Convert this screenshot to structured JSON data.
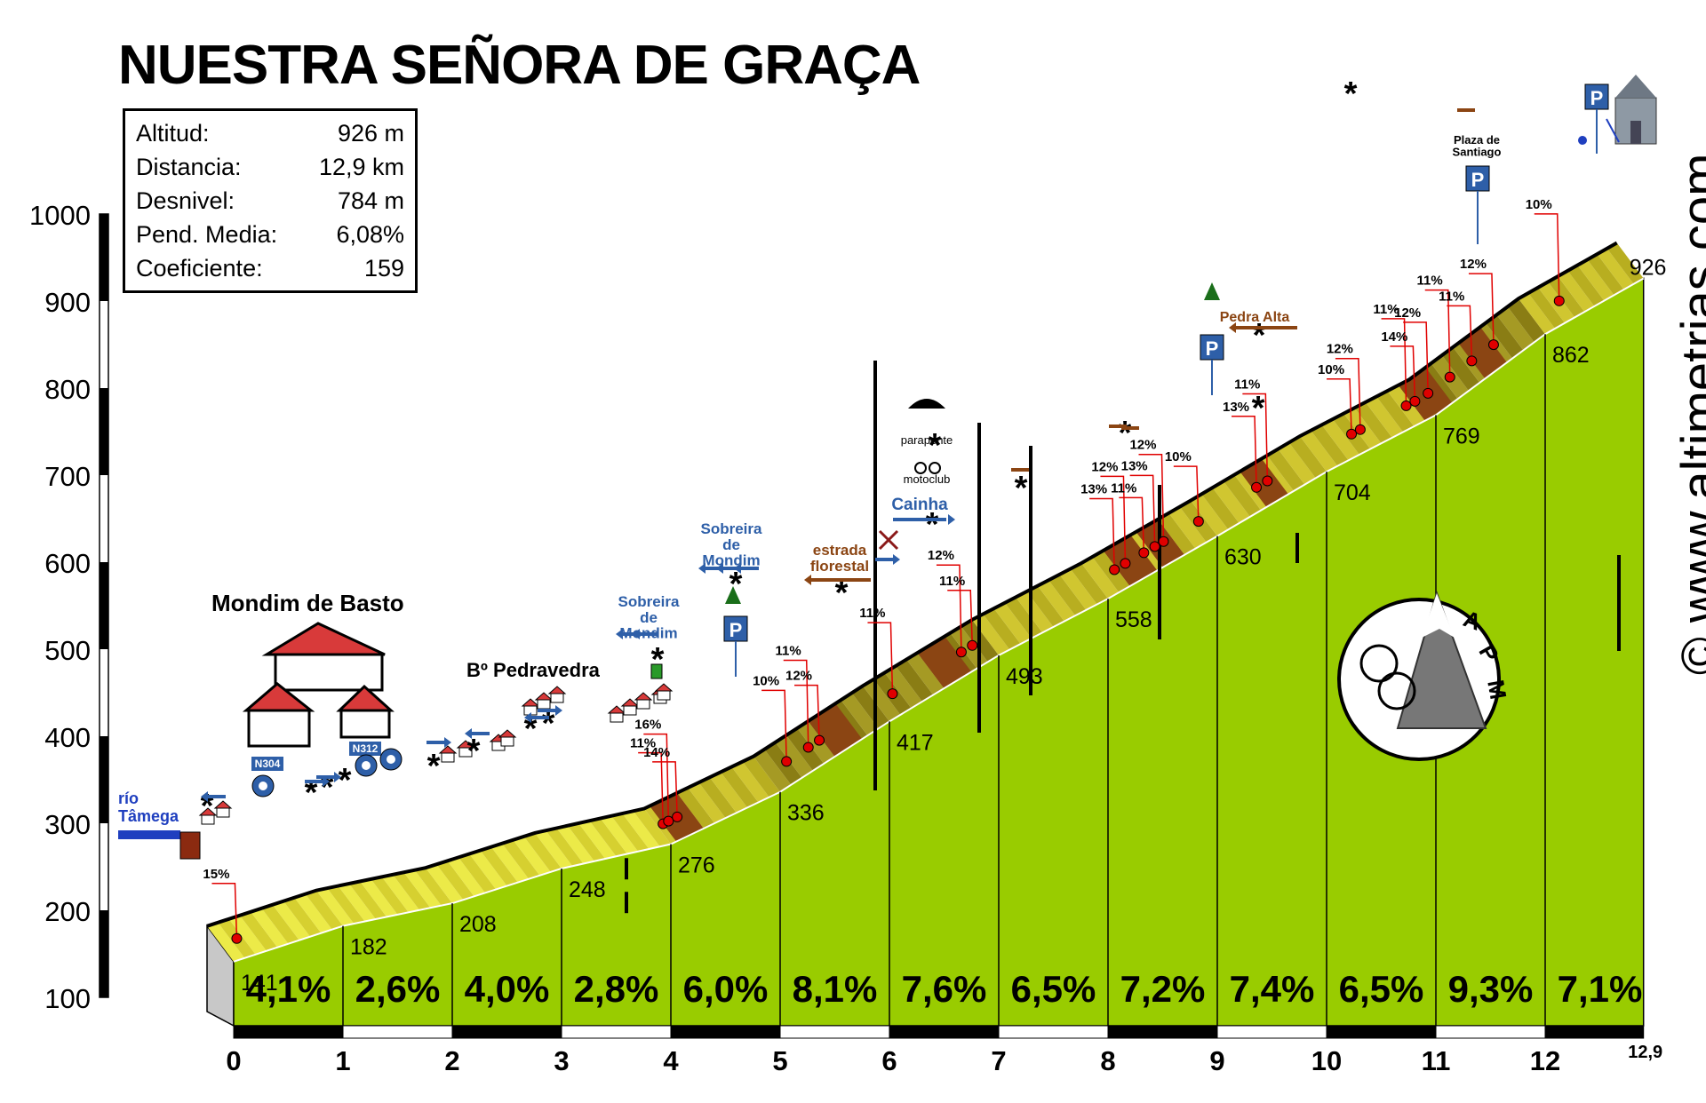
{
  "title": "NUESTRA SEÑORA DE GRAÇA",
  "stats": [
    {
      "label": "Altitud:",
      "value": "926 m"
    },
    {
      "label": "Distancia:",
      "value": "12,9 km"
    },
    {
      "label": "Desnivel:",
      "value": "784 m"
    },
    {
      "label": "Pend. Media:",
      "value": "6,08%"
    },
    {
      "label": "Coeficiente:",
      "value": "159"
    }
  ],
  "brand": "© www.altimetrias.com",
  "logo_text": "APM",
  "colors": {
    "fill": "#99cc00",
    "road": "#c8c800",
    "steep": "#8b4513",
    "dot": "#e00000",
    "sign": "#2e5fa8",
    "brown_sign": "#8b4513"
  },
  "chart_data": {
    "type": "area",
    "x_unit": "km",
    "ylim": [
      100,
      1000
    ],
    "yticks": [
      "1000",
      "900",
      "800",
      "700",
      "600",
      "500",
      "400",
      "300",
      "200",
      "100"
    ],
    "xticks": [
      "0",
      "1",
      "2",
      "3",
      "4",
      "5",
      "6",
      "7",
      "8",
      "9",
      "10",
      "11",
      "12"
    ],
    "end_label": "12,9",
    "km_points": [
      {
        "km": 0,
        "alt": 141
      },
      {
        "km": 1,
        "alt": 182
      },
      {
        "km": 2,
        "alt": 208
      },
      {
        "km": 3,
        "alt": 248
      },
      {
        "km": 4,
        "alt": 276
      },
      {
        "km": 5,
        "alt": 336
      },
      {
        "km": 6,
        "alt": 417
      },
      {
        "km": 7,
        "alt": 493
      },
      {
        "km": 8,
        "alt": 558
      },
      {
        "km": 9,
        "alt": 630
      },
      {
        "km": 10,
        "alt": 704
      },
      {
        "km": 11,
        "alt": 769
      },
      {
        "km": 12,
        "alt": 862
      },
      {
        "km": 12.9,
        "alt": 926
      }
    ],
    "alt_labels": [
      "141",
      "182",
      "208",
      "248",
      "276",
      "336",
      "417",
      "493",
      "558",
      "630",
      "704",
      "769",
      "862",
      "926"
    ],
    "segment_grades": [
      "4,1%",
      "2,6%",
      "4,0%",
      "2,8%",
      "6,0%",
      "8,1%",
      "7,6%",
      "6,5%",
      "7,2%",
      "7,4%",
      "6,5%",
      "9,3%",
      "7,1%"
    ],
    "steep_points": [
      {
        "km": 0.15,
        "label": "15%"
      },
      {
        "km": 4.05,
        "label": "11%"
      },
      {
        "km": 4.1,
        "label": "16%"
      },
      {
        "km": 4.18,
        "label": "14%"
      },
      {
        "km": 5.18,
        "label": "10%"
      },
      {
        "km": 5.38,
        "label": "11%"
      },
      {
        "km": 5.48,
        "label": "12%"
      },
      {
        "km": 6.15,
        "label": "11%"
      },
      {
        "km": 6.78,
        "label": "12%"
      },
      {
        "km": 6.88,
        "label": "11%"
      },
      {
        "km": 8.18,
        "label": "13%"
      },
      {
        "km": 8.28,
        "label": "12%"
      },
      {
        "km": 8.45,
        "label": "11%"
      },
      {
        "km": 8.55,
        "label": "13%"
      },
      {
        "km": 8.63,
        "label": "12%"
      },
      {
        "km": 8.95,
        "label": "10%"
      },
      {
        "km": 9.48,
        "label": "13%"
      },
      {
        "km": 9.58,
        "label": "11%"
      },
      {
        "km": 10.35,
        "label": "10%"
      },
      {
        "km": 10.43,
        "label": "12%"
      },
      {
        "km": 10.85,
        "label": "11%"
      },
      {
        "km": 10.93,
        "label": "14%"
      },
      {
        "km": 11.05,
        "label": "12%"
      },
      {
        "km": 11.25,
        "label": "11%"
      },
      {
        "km": 11.45,
        "label": "11%"
      },
      {
        "km": 11.65,
        "label": "12%"
      },
      {
        "km": 12.25,
        "label": "10%"
      }
    ],
    "places": {
      "river": "río Tâmega",
      "town": "Mondim de Basto",
      "village": "Bº Pedravedra",
      "road1": "N304",
      "road2": "N312",
      "sobreira1": "Sobreira de Mondim",
      "sobreira2": "Sobreira de Mondim",
      "estrada": "estrada florestal",
      "cainha": "Cainha",
      "parapente": "parapente",
      "motoclub": "motoclub",
      "pedra_alta": "Pedra Alta",
      "plaza": "Plaza de Santiago",
      "parking": "P"
    }
  }
}
